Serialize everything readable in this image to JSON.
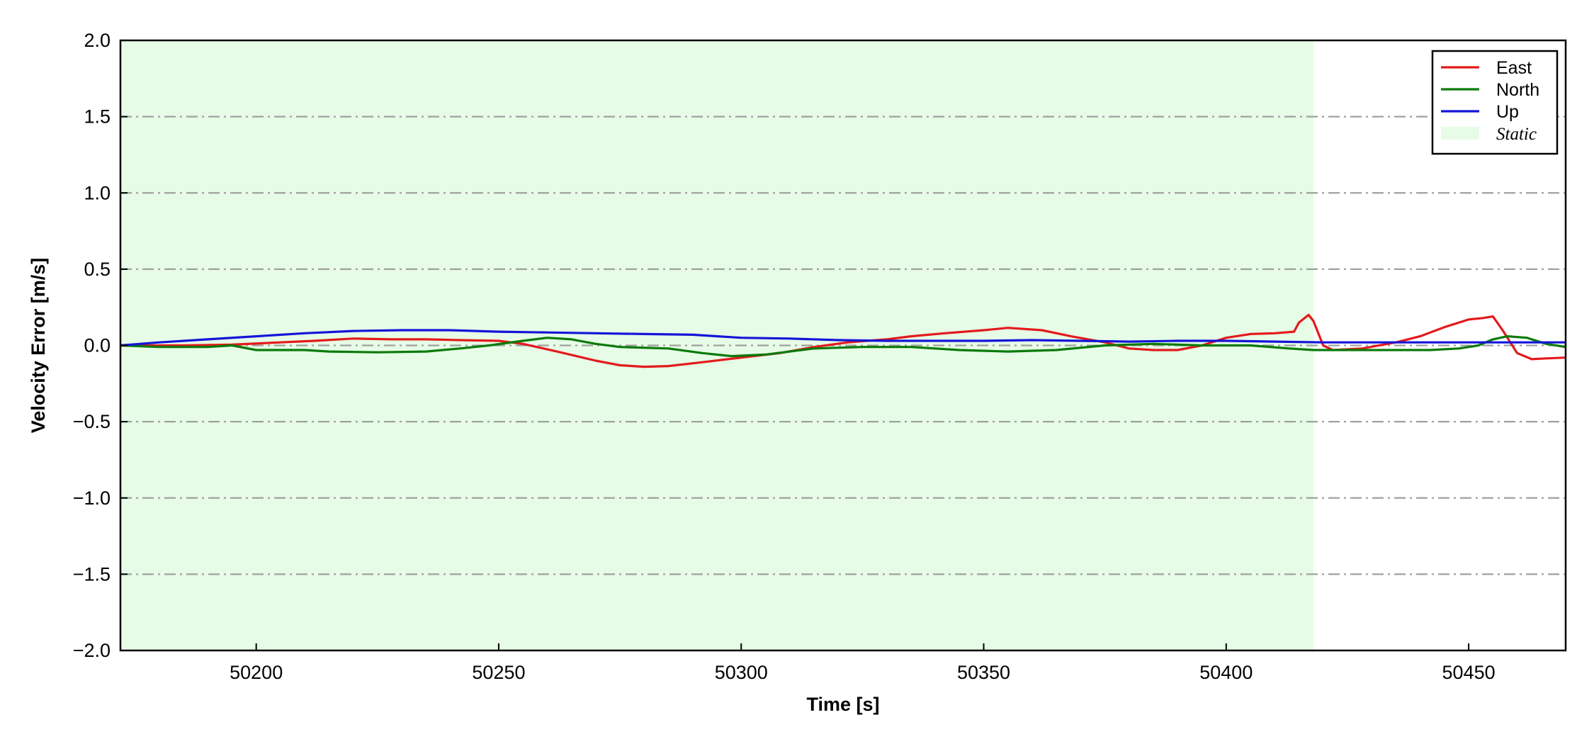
{
  "chart_data": {
    "type": "line",
    "title": "",
    "xlabel": "Time [s]",
    "ylabel": "Velocity Error [m/s]",
    "xlim": [
      50172,
      50470
    ],
    "ylim": [
      -2.0,
      2.0
    ],
    "x_ticks": [
      50200,
      50250,
      50300,
      50350,
      50400,
      50450
    ],
    "y_ticks": [
      -2.0,
      -1.5,
      -1.0,
      -0.5,
      0.0,
      0.5,
      1.0,
      1.5,
      2.0
    ],
    "x_tick_labels": [
      "50200",
      "50250",
      "50300",
      "50350",
      "50400",
      "50450"
    ],
    "y_tick_labels": [
      "−2.0",
      "−1.5",
      "−1.0",
      "−0.5",
      "0.0",
      "0.5",
      "1.0",
      "1.5",
      "2.0"
    ],
    "grid": "horizontal dash-dot",
    "legend_position": "top-right",
    "static_region": {
      "label": "Static",
      "x": [
        50172,
        50418
      ],
      "color": "#e6fce6"
    },
    "series": [
      {
        "name": "East",
        "color": "#e31a1c",
        "points": [
          [
            50172,
            0.0
          ],
          [
            50185,
            0.0
          ],
          [
            50195,
            0.005
          ],
          [
            50205,
            0.02
          ],
          [
            50212,
            0.03
          ],
          [
            50220,
            0.045
          ],
          [
            50228,
            0.04
          ],
          [
            50235,
            0.04
          ],
          [
            50242,
            0.035
          ],
          [
            50250,
            0.03
          ],
          [
            50255,
            0.01
          ],
          [
            50262,
            -0.04
          ],
          [
            50270,
            -0.1
          ],
          [
            50275,
            -0.13
          ],
          [
            50280,
            -0.14
          ],
          [
            50285,
            -0.135
          ],
          [
            50292,
            -0.11
          ],
          [
            50300,
            -0.08
          ],
          [
            50308,
            -0.05
          ],
          [
            50315,
            -0.01
          ],
          [
            50322,
            0.02
          ],
          [
            50330,
            0.04
          ],
          [
            50335,
            0.06
          ],
          [
            50342,
            0.08
          ],
          [
            50350,
            0.1
          ],
          [
            50355,
            0.115
          ],
          [
            50362,
            0.1
          ],
          [
            50368,
            0.06
          ],
          [
            50375,
            0.02
          ],
          [
            50380,
            -0.02
          ],
          [
            50385,
            -0.03
          ],
          [
            50390,
            -0.03
          ],
          [
            50395,
            0.0
          ],
          [
            50400,
            0.05
          ],
          [
            50405,
            0.075
          ],
          [
            50410,
            0.08
          ],
          [
            50414,
            0.09
          ],
          [
            50415,
            0.15
          ],
          [
            50417,
            0.2
          ],
          [
            50418,
            0.16
          ],
          [
            50420,
            0.0
          ],
          [
            50422,
            -0.03
          ],
          [
            50428,
            -0.02
          ],
          [
            50435,
            0.02
          ],
          [
            50440,
            0.06
          ],
          [
            50445,
            0.12
          ],
          [
            50450,
            0.17
          ],
          [
            50453,
            0.18
          ],
          [
            50455,
            0.19
          ],
          [
            50457,
            0.1
          ],
          [
            50460,
            -0.05
          ],
          [
            50463,
            -0.09
          ],
          [
            50466,
            -0.085
          ],
          [
            50470,
            -0.08
          ]
        ]
      },
      {
        "name": "North",
        "color": "#0b7a0b",
        "points": [
          [
            50172,
            0.0
          ],
          [
            50180,
            -0.01
          ],
          [
            50190,
            -0.01
          ],
          [
            50195,
            0.0
          ],
          [
            50200,
            -0.03
          ],
          [
            50210,
            -0.03
          ],
          [
            50215,
            -0.04
          ],
          [
            50225,
            -0.045
          ],
          [
            50235,
            -0.04
          ],
          [
            50242,
            -0.02
          ],
          [
            50248,
            0.0
          ],
          [
            50255,
            0.03
          ],
          [
            50260,
            0.05
          ],
          [
            50265,
            0.04
          ],
          [
            50270,
            0.01
          ],
          [
            50275,
            -0.01
          ],
          [
            50285,
            -0.02
          ],
          [
            50292,
            -0.05
          ],
          [
            50298,
            -0.07
          ],
          [
            50305,
            -0.06
          ],
          [
            50315,
            -0.02
          ],
          [
            50325,
            -0.01
          ],
          [
            50335,
            -0.01
          ],
          [
            50345,
            -0.03
          ],
          [
            50355,
            -0.04
          ],
          [
            50365,
            -0.03
          ],
          [
            50375,
            0.0
          ],
          [
            50385,
            0.01
          ],
          [
            50395,
            0.0
          ],
          [
            50405,
            0.0
          ],
          [
            50413,
            -0.02
          ],
          [
            50418,
            -0.03
          ],
          [
            50425,
            -0.03
          ],
          [
            50435,
            -0.03
          ],
          [
            50442,
            -0.03
          ],
          [
            50448,
            -0.02
          ],
          [
            50452,
            0.0
          ],
          [
            50455,
            0.04
          ],
          [
            50458,
            0.06
          ],
          [
            50462,
            0.05
          ],
          [
            50466,
            0.01
          ],
          [
            50470,
            -0.01
          ]
        ]
      },
      {
        "name": "Up",
        "color": "#1414d9",
        "points": [
          [
            50172,
            0.0
          ],
          [
            50180,
            0.02
          ],
          [
            50190,
            0.04
          ],
          [
            50200,
            0.06
          ],
          [
            50210,
            0.08
          ],
          [
            50220,
            0.095
          ],
          [
            50230,
            0.1
          ],
          [
            50240,
            0.1
          ],
          [
            50250,
            0.09
          ],
          [
            50260,
            0.085
          ],
          [
            50270,
            0.08
          ],
          [
            50280,
            0.075
          ],
          [
            50290,
            0.07
          ],
          [
            50300,
            0.05
          ],
          [
            50310,
            0.045
          ],
          [
            50320,
            0.035
          ],
          [
            50330,
            0.03
          ],
          [
            50340,
            0.03
          ],
          [
            50350,
            0.03
          ],
          [
            50360,
            0.035
          ],
          [
            50370,
            0.03
          ],
          [
            50380,
            0.025
          ],
          [
            50390,
            0.03
          ],
          [
            50400,
            0.03
          ],
          [
            50410,
            0.025
          ],
          [
            50420,
            0.02
          ],
          [
            50430,
            0.02
          ],
          [
            50440,
            0.02
          ],
          [
            50450,
            0.02
          ],
          [
            50460,
            0.02
          ],
          [
            50470,
            0.02
          ]
        ]
      }
    ]
  }
}
